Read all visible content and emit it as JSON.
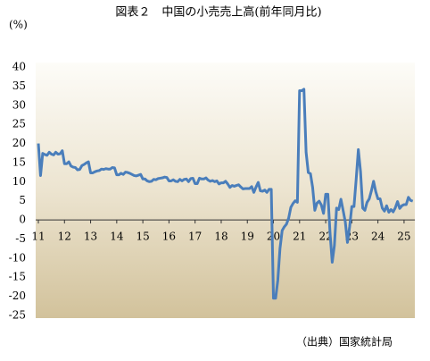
{
  "chart_data": {
    "type": "line",
    "title": "図表２　中国の小売売上高(前年同月比)",
    "y_label": "(%)",
    "source": "（出典）国家統計局",
    "color": "#4a7ebb",
    "grid": false,
    "ylim": [
      -25,
      40
    ],
    "yticks": [
      -25,
      -20,
      -15,
      -10,
      -5,
      0,
      5,
      10,
      15,
      20,
      25,
      30,
      35,
      40
    ],
    "categories": [
      "11",
      null,
      null,
      null,
      null,
      null,
      null,
      null,
      null,
      null,
      null,
      null,
      "12",
      null,
      null,
      null,
      null,
      null,
      null,
      null,
      null,
      null,
      null,
      null,
      "13",
      null,
      null,
      null,
      null,
      null,
      null,
      null,
      null,
      null,
      null,
      null,
      "14",
      null,
      null,
      null,
      null,
      null,
      null,
      null,
      null,
      null,
      null,
      null,
      "15",
      null,
      null,
      null,
      null,
      null,
      null,
      null,
      null,
      null,
      null,
      null,
      "16",
      null,
      null,
      null,
      null,
      null,
      null,
      null,
      null,
      null,
      null,
      null,
      "17",
      null,
      null,
      null,
      null,
      null,
      null,
      null,
      null,
      null,
      null,
      null,
      "18",
      null,
      null,
      null,
      null,
      null,
      null,
      null,
      null,
      null,
      null,
      null,
      "19",
      null,
      null,
      null,
      null,
      null,
      null,
      null,
      null,
      null,
      null,
      null,
      "20",
      null,
      null,
      null,
      null,
      null,
      null,
      null,
      null,
      null,
      null,
      null,
      "21",
      null,
      null,
      null,
      null,
      null,
      null,
      null,
      null,
      null,
      null,
      null,
      "22",
      null,
      null,
      null,
      null,
      null,
      null,
      null,
      null,
      null,
      null,
      null,
      "23",
      null,
      null,
      null,
      null,
      null,
      null,
      null,
      null,
      null,
      null,
      null,
      "24",
      null,
      null,
      null,
      null,
      null,
      null,
      null,
      null,
      null,
      null,
      null,
      "25",
      null,
      null,
      null,
      null
    ],
    "values": [
      20,
      11.6,
      17.4,
      17.1,
      16.9,
      17.7,
      17.2,
      17.0,
      17.7,
      17.2,
      17.3,
      18.1,
      14.7,
      14.7,
      15.2,
      14.1,
      13.8,
      13.7,
      13.1,
      13.2,
      14.2,
      14.5,
      14.9,
      15.2,
      12.3,
      12.3,
      12.6,
      12.8,
      12.9,
      13.3,
      13.2,
      13.4,
      13.3,
      13.3,
      13.7,
      13.6,
      11.8,
      11.8,
      12.2,
      11.9,
      12.5,
      12.4,
      12.2,
      11.9,
      11.6,
      11.5,
      11.7,
      11.9,
      10.7,
      10.7,
      10.2,
      10.0,
      10.1,
      10.6,
      10.5,
      10.8,
      10.9,
      11.0,
      11.2,
      11.1,
      10.2,
      10.2,
      10.5,
      10.1,
      10.0,
      10.6,
      10.2,
      10.6,
      10.7,
      10.0,
      10.8,
      10.9,
      9.5,
      9.5,
      10.9,
      10.7,
      10.7,
      11.0,
      10.4,
      10.1,
      10.3,
      10.0,
      10.2,
      9.4,
      9.7,
      9.7,
      10.1,
      9.4,
      8.5,
      9.0,
      8.8,
      9.0,
      9.2,
      8.6,
      8.1,
      8.2,
      8.2,
      8.2,
      8.7,
      7.2,
      8.6,
      9.8,
      7.6,
      7.5,
      7.8,
      7.2,
      8.0,
      8.0,
      -20.5,
      -20.5,
      -15.8,
      -7.5,
      -2.8,
      -1.8,
      -1.1,
      0.5,
      3.3,
      4.3,
      5.0,
      4.6,
      33.8,
      33.8,
      34.2,
      17.7,
      12.4,
      12.1,
      8.5,
      2.5,
      4.4,
      4.9,
      3.9,
      1.7,
      6.7,
      6.7,
      -3.5,
      -11.1,
      -6.7,
      3.1,
      2.7,
      5.4,
      2.5,
      -0.5,
      -5.9,
      -1.8,
      3.5,
      3.5,
      10.6,
      18.4,
      12.7,
      3.1,
      2.5,
      4.6,
      5.5,
      7.6,
      10.1,
      7.4,
      5.5,
      5.5,
      3.1,
      2.3,
      3.7,
      2.0,
      2.7,
      2.1,
      3.2,
      4.8,
      3.0,
      3.7,
      4.0,
      4.0,
      5.9,
      5.1,
      4.9
    ]
  }
}
